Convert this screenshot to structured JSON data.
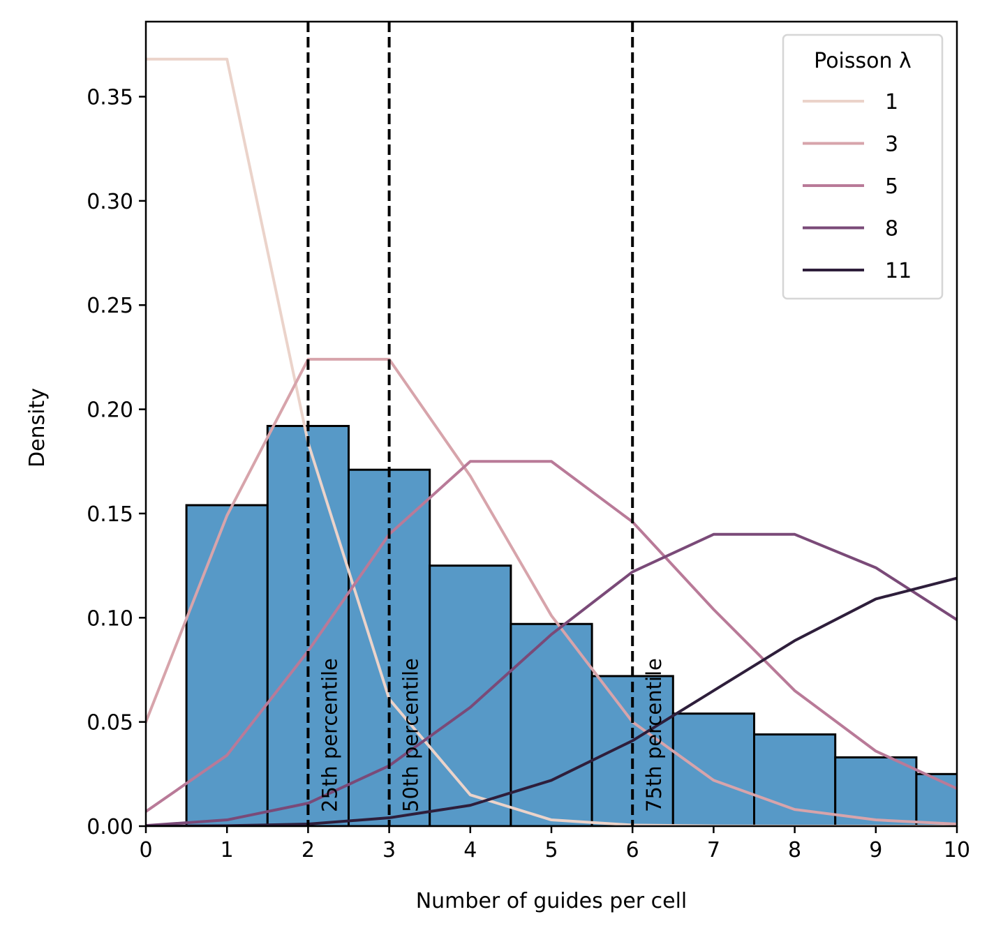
{
  "chart_data": {
    "type": "bar",
    "xlabel": "Number of guides per cell",
    "ylabel": "Density",
    "xlim": [
      0,
      10
    ],
    "ylim": [
      0,
      0.386
    ],
    "x_ticks": [
      "0",
      "1",
      "2",
      "3",
      "4",
      "5",
      "6",
      "7",
      "8",
      "9",
      "10"
    ],
    "y_ticks": [
      "0.00",
      "0.05",
      "0.10",
      "0.15",
      "0.20",
      "0.25",
      "0.30",
      "0.35"
    ],
    "grid": false,
    "histogram": {
      "color": "#5799c7",
      "edge_color": "#000000",
      "bins": [
        {
          "x0": 0.5,
          "x1": 1.5,
          "value": 0.154
        },
        {
          "x0": 1.5,
          "x1": 2.5,
          "value": 0.192
        },
        {
          "x0": 2.5,
          "x1": 3.5,
          "value": 0.171
        },
        {
          "x0": 3.5,
          "x1": 4.5,
          "value": 0.125
        },
        {
          "x0": 4.5,
          "x1": 5.5,
          "value": 0.097
        },
        {
          "x0": 5.5,
          "x1": 6.5,
          "value": 0.072
        },
        {
          "x0": 6.5,
          "x1": 7.5,
          "value": 0.054
        },
        {
          "x0": 7.5,
          "x1": 8.5,
          "value": 0.044
        },
        {
          "x0": 8.5,
          "x1": 9.5,
          "value": 0.033
        },
        {
          "x0": 9.5,
          "x1": 10.5,
          "value": 0.025
        }
      ]
    },
    "percentiles": [
      {
        "x": 2,
        "label": "25th percentile"
      },
      {
        "x": 3,
        "label": "50th percentile"
      },
      {
        "x": 6,
        "label": "75th percentile"
      }
    ],
    "legend": {
      "title": "Poisson λ",
      "placement": "top-right"
    },
    "series": [
      {
        "name": "1",
        "color": "#ebd3ca",
        "points": [
          [
            0,
            0.368
          ],
          [
            1,
            0.368
          ],
          [
            2,
            0.184
          ],
          [
            3,
            0.061
          ],
          [
            4,
            0.015
          ],
          [
            5,
            0.003
          ],
          [
            6,
            0.0005
          ],
          [
            7,
            0.0001
          ],
          [
            8,
            0.0
          ],
          [
            9,
            0.0
          ],
          [
            10,
            0.0
          ]
        ]
      },
      {
        "name": "3",
        "color": "#d7a4ab",
        "points": [
          [
            0,
            0.05
          ],
          [
            1,
            0.149
          ],
          [
            2,
            0.224
          ],
          [
            3,
            0.224
          ],
          [
            4,
            0.168
          ],
          [
            5,
            0.101
          ],
          [
            6,
            0.05
          ],
          [
            7,
            0.022
          ],
          [
            8,
            0.008
          ],
          [
            9,
            0.003
          ],
          [
            10,
            0.001
          ]
        ]
      },
      {
        "name": "5",
        "color": "#b97a98",
        "points": [
          [
            0,
            0.007
          ],
          [
            1,
            0.034
          ],
          [
            2,
            0.084
          ],
          [
            3,
            0.14
          ],
          [
            4,
            0.175
          ],
          [
            5,
            0.175
          ],
          [
            6,
            0.146
          ],
          [
            7,
            0.104
          ],
          [
            8,
            0.065
          ],
          [
            9,
            0.036
          ],
          [
            10,
            0.018
          ]
        ]
      },
      {
        "name": "8",
        "color": "#7a4a78",
        "points": [
          [
            0,
            0.0003
          ],
          [
            1,
            0.003
          ],
          [
            2,
            0.011
          ],
          [
            3,
            0.029
          ],
          [
            4,
            0.057
          ],
          [
            5,
            0.092
          ],
          [
            6,
            0.122
          ],
          [
            7,
            0.14
          ],
          [
            8,
            0.14
          ],
          [
            9,
            0.124
          ],
          [
            10,
            0.099
          ]
        ]
      },
      {
        "name": "11",
        "color": "#2e1e3b",
        "points": [
          [
            0,
            0.0
          ],
          [
            1,
            0.0002
          ],
          [
            2,
            0.001
          ],
          [
            3,
            0.004
          ],
          [
            4,
            0.01
          ],
          [
            5,
            0.022
          ],
          [
            6,
            0.041
          ],
          [
            7,
            0.065
          ],
          [
            8,
            0.089
          ],
          [
            9,
            0.109
          ],
          [
            10,
            0.119
          ]
        ]
      }
    ]
  }
}
